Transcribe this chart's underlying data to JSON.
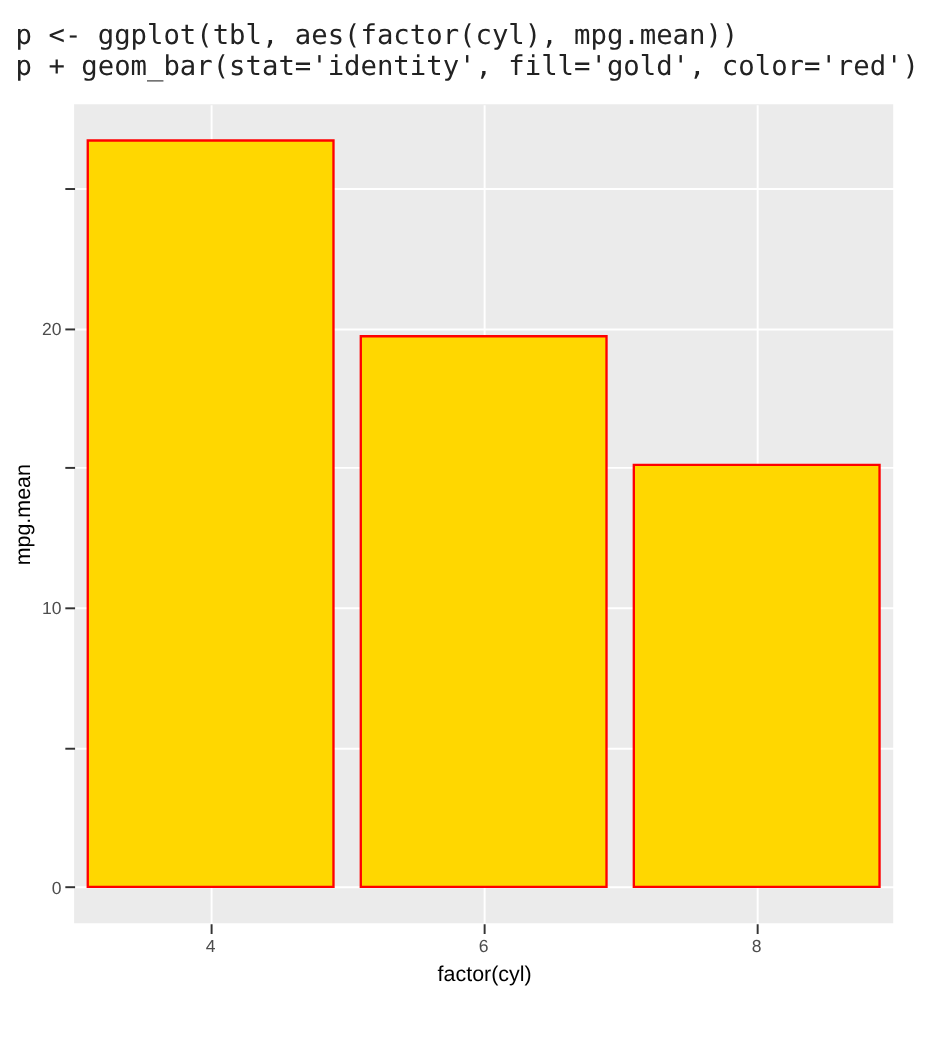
{
  "chart_data": {
    "type": "bar",
    "xlabel": "factor(cyl)",
    "ylabel": "mpg.mean",
    "categories": [
      "4",
      "6",
      "8"
    ],
    "values": [
      26.7,
      19.7,
      15.1
    ],
    "color": "#ffd700",
    "ylim": [
      -1.3,
      28
    ],
    "yticks": [
      0,
      {
        "value": 5,
        "label": null
      },
      10,
      {
        "value": 15,
        "label": null
      },
      20,
      {
        "value": 25,
        "label": null
      }
    ],
    "grid": true,
    "annotations": [
      "p <- ggplot(tbl, aes(factor(cyl), mpg.mean))",
      "p + geom_bar(stat='identity', fill='gold', color='red')"
    ]
  }
}
